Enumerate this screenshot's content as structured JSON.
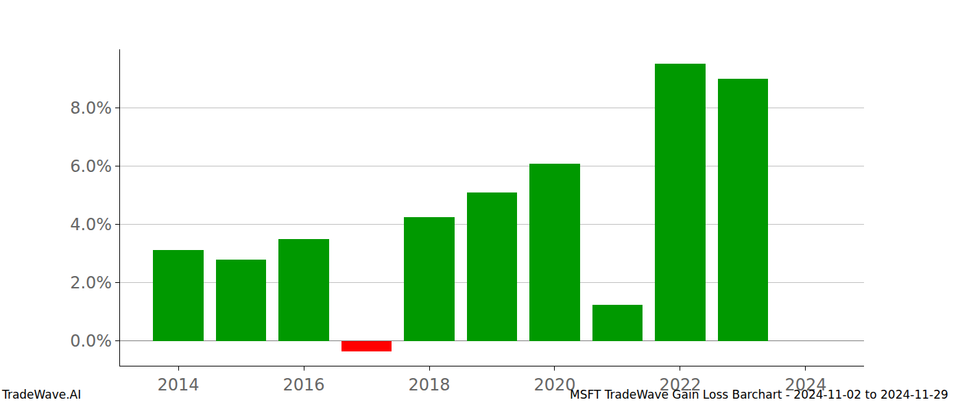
{
  "chart_data": {
    "type": "bar",
    "x": [
      2014,
      2015,
      2016,
      2017,
      2018,
      2019,
      2020,
      2021,
      2022,
      2023
    ],
    "values": [
      3.12,
      2.78,
      3.5,
      -0.35,
      4.25,
      5.1,
      6.08,
      1.25,
      9.5,
      8.98
    ],
    "colors": [
      "#009900",
      "#009900",
      "#009900",
      "#ff0000",
      "#009900",
      "#009900",
      "#009900",
      "#009900",
      "#009900",
      "#009900"
    ],
    "xlim": [
      2013.07,
      2024.93
    ],
    "xticks": [
      2014,
      2016,
      2018,
      2020,
      2022,
      2024
    ],
    "ylim": [
      -0.85,
      10.0
    ],
    "yticks": [
      {
        "value": 0,
        "label": "0.0%"
      },
      {
        "value": 2,
        "label": "2.0%"
      },
      {
        "value": 4,
        "label": "4.0%"
      },
      {
        "value": 6,
        "label": "6.0%"
      },
      {
        "value": 8,
        "label": "8.0%"
      }
    ],
    "grid": true,
    "annotations": [
      "TradeWave.AI",
      "MSFT TradeWave Gain Loss Barchart - 2024-11-02 to 2024-11-29"
    ]
  }
}
